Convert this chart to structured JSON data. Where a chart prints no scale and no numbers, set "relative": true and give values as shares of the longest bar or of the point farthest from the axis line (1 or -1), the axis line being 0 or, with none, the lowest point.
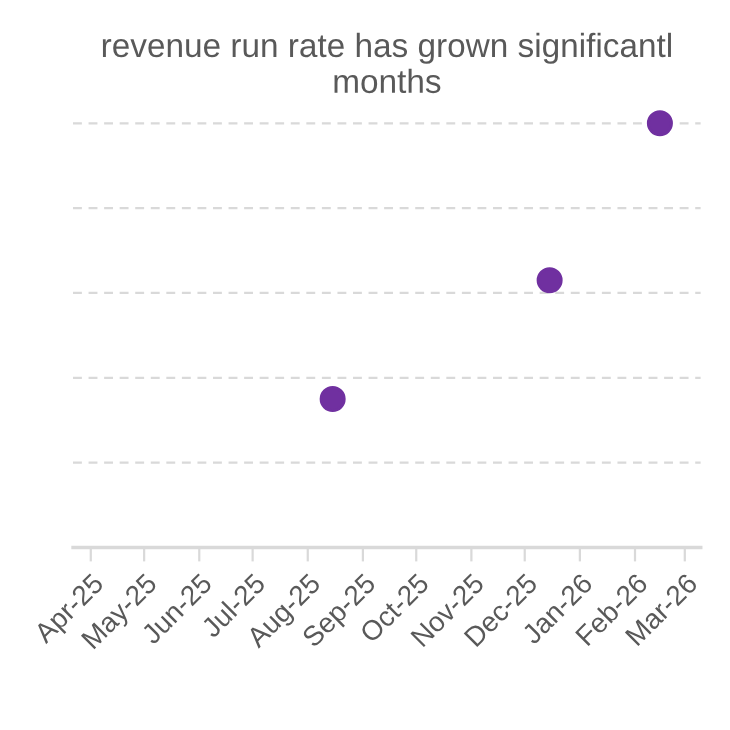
{
  "chart_data": {
    "type": "scatter",
    "title": "revenue run rate has grown significantl\nmonths",
    "x": [
      "2025-08-15",
      "2025-12-15",
      "2026-02-15"
    ],
    "series": [
      {
        "color": "#7030a0",
        "values": [
          0.35,
          0.63,
          1.0
        ]
      }
    ],
    "relative": true,
    "marker": "circle",
    "grid": "y",
    "legend": false,
    "xlim": [
      "2025-03-22",
      "2026-03-10"
    ],
    "xticks": [
      {
        "value": "2025-04-01",
        "label": "Apr-25"
      },
      {
        "value": "2025-05-01",
        "label": "May-25"
      },
      {
        "value": "2025-06-01",
        "label": "Jun-25"
      },
      {
        "value": "2025-07-01",
        "label": "Jul-25"
      },
      {
        "value": "2025-08-01",
        "label": "Aug-25"
      },
      {
        "value": "2025-09-01",
        "label": "Sep-25"
      },
      {
        "value": "2025-10-01",
        "label": "Oct-25"
      },
      {
        "value": "2025-11-01",
        "label": "Nov-25"
      },
      {
        "value": "2025-12-01",
        "label": "Dec-25"
      },
      {
        "value": "2026-01-01",
        "label": "Jan-26"
      },
      {
        "value": "2026-02-01",
        "label": "Feb-26"
      },
      {
        "value": "2026-03-01",
        "label": "Mar-26"
      }
    ]
  }
}
